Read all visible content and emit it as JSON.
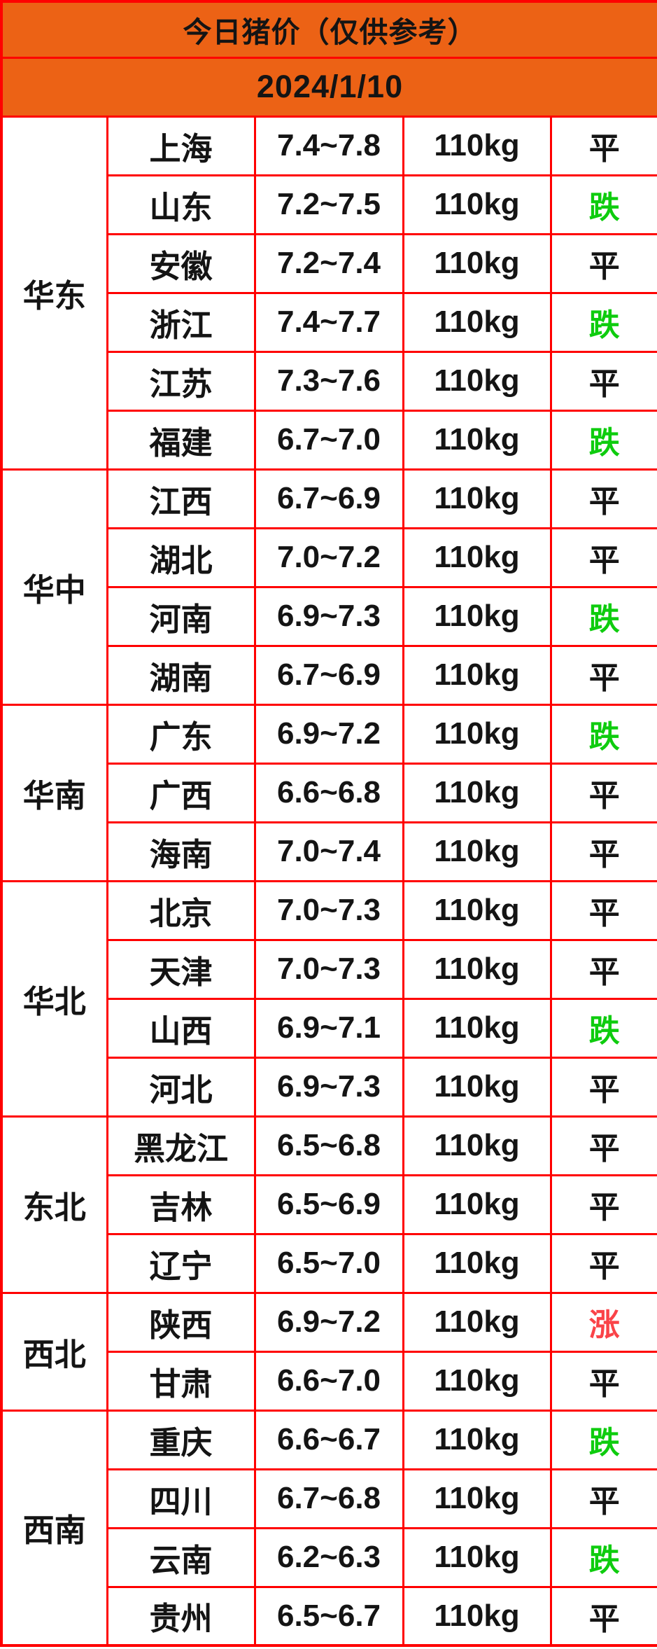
{
  "header": {
    "title": "今日猪价（仅供参考）",
    "date": "2024/1/10"
  },
  "colors": {
    "header_orange": "#EC6215",
    "grid_red": "#FF0000",
    "text_black": "#141414",
    "status_down_green": "#0ECC0E",
    "status_up_red": "#FA4348"
  },
  "table": {
    "regions": [
      {
        "name": "华东",
        "rows": [
          {
            "province": "上海",
            "price": "7.4~7.8",
            "weight": "110kg",
            "status": "平",
            "trend": "flat"
          },
          {
            "province": "山东",
            "price": "7.2~7.5",
            "weight": "110kg",
            "status": "跌",
            "trend": "down"
          },
          {
            "province": "安徽",
            "price": "7.2~7.4",
            "weight": "110kg",
            "status": "平",
            "trend": "flat"
          },
          {
            "province": "浙江",
            "price": "7.4~7.7",
            "weight": "110kg",
            "status": "跌",
            "trend": "down"
          },
          {
            "province": "江苏",
            "price": "7.3~7.6",
            "weight": "110kg",
            "status": "平",
            "trend": "flat"
          },
          {
            "province": "福建",
            "price": "6.7~7.0",
            "weight": "110kg",
            "status": "跌",
            "trend": "down"
          }
        ]
      },
      {
        "name": "华中",
        "rows": [
          {
            "province": "江西",
            "price": "6.7~6.9",
            "weight": "110kg",
            "status": "平",
            "trend": "flat"
          },
          {
            "province": "湖北",
            "price": "7.0~7.2",
            "weight": "110kg",
            "status": "平",
            "trend": "flat"
          },
          {
            "province": "河南",
            "price": "6.9~7.3",
            "weight": "110kg",
            "status": "跌",
            "trend": "down"
          },
          {
            "province": "湖南",
            "price": "6.7~6.9",
            "weight": "110kg",
            "status": "平",
            "trend": "flat"
          }
        ]
      },
      {
        "name": "华南",
        "rows": [
          {
            "province": "广东",
            "price": "6.9~7.2",
            "weight": "110kg",
            "status": "跌",
            "trend": "down"
          },
          {
            "province": "广西",
            "price": "6.6~6.8",
            "weight": "110kg",
            "status": "平",
            "trend": "flat"
          },
          {
            "province": "海南",
            "price": "7.0~7.4",
            "weight": "110kg",
            "status": "平",
            "trend": "flat"
          }
        ]
      },
      {
        "name": "华北",
        "rows": [
          {
            "province": "北京",
            "price": "7.0~7.3",
            "weight": "110kg",
            "status": "平",
            "trend": "flat"
          },
          {
            "province": "天津",
            "price": "7.0~7.3",
            "weight": "110kg",
            "status": "平",
            "trend": "flat"
          },
          {
            "province": "山西",
            "price": "6.9~7.1",
            "weight": "110kg",
            "status": "跌",
            "trend": "down"
          },
          {
            "province": "河北",
            "price": "6.9~7.3",
            "weight": "110kg",
            "status": "平",
            "trend": "flat"
          }
        ]
      },
      {
        "name": "东北",
        "rows": [
          {
            "province": "黑龙江",
            "price": "6.5~6.8",
            "weight": "110kg",
            "status": "平",
            "trend": "flat"
          },
          {
            "province": "吉林",
            "price": "6.5~6.9",
            "weight": "110kg",
            "status": "平",
            "trend": "flat"
          },
          {
            "province": "辽宁",
            "price": "6.5~7.0",
            "weight": "110kg",
            "status": "平",
            "trend": "flat"
          }
        ]
      },
      {
        "name": "西北",
        "rows": [
          {
            "province": "陕西",
            "price": "6.9~7.2",
            "weight": "110kg",
            "status": "涨",
            "trend": "up"
          },
          {
            "province": "甘肃",
            "price": "6.6~7.0",
            "weight": "110kg",
            "status": "平",
            "trend": "flat"
          }
        ]
      },
      {
        "name": "西南",
        "rows": [
          {
            "province": "重庆",
            "price": "6.6~6.7",
            "weight": "110kg",
            "status": "跌",
            "trend": "down"
          },
          {
            "province": "四川",
            "price": "6.7~6.8",
            "weight": "110kg",
            "status": "平",
            "trend": "flat"
          },
          {
            "province": "云南",
            "price": "6.2~6.3",
            "weight": "110kg",
            "status": "跌",
            "trend": "down"
          },
          {
            "province": "贵州",
            "price": "6.5~6.7",
            "weight": "110kg",
            "status": "平",
            "trend": "flat"
          }
        ]
      }
    ]
  }
}
